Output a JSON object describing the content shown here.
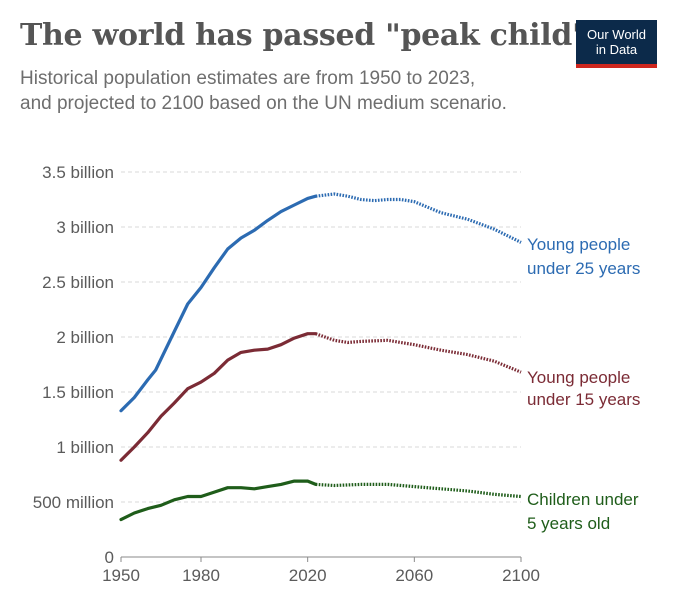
{
  "header": {
    "title": "The world has passed \"peak child\"",
    "subtitle_line1": "Historical population estimates are from 1950 to 2023,",
    "subtitle_line2": "and projected to 2100 based on the UN medium scenario.",
    "logo_line1": "Our World",
    "logo_line2": "in Data"
  },
  "colors": {
    "under25": "#2c6bb2",
    "under15": "#7b2b35",
    "under5": "#1f5d1a",
    "logo_bg": "#0c2a4a",
    "logo_accent": "#ce261e"
  },
  "chart_data": {
    "type": "line",
    "title": "The world has passed \"peak child\"",
    "xlim": [
      1950,
      2100
    ],
    "ylim": [
      0,
      3500000000
    ],
    "projection_start": 2023,
    "x_ticks": [
      {
        "value": 1950,
        "label": "1950"
      },
      {
        "value": 1980,
        "label": "1980"
      },
      {
        "value": 2020,
        "label": "2020"
      },
      {
        "value": 2060,
        "label": "2060"
      },
      {
        "value": 2100,
        "label": "2100"
      }
    ],
    "y_ticks": [
      {
        "value": 0,
        "label": "0"
      },
      {
        "value": 500000000,
        "label": "500 million"
      },
      {
        "value": 1000000000,
        "label": "1 billion"
      },
      {
        "value": 1500000000,
        "label": "1.5 billion"
      },
      {
        "value": 2000000000,
        "label": "2 billion"
      },
      {
        "value": 2500000000,
        "label": "2.5 billion"
      },
      {
        "value": 3000000000,
        "label": "3 billion"
      },
      {
        "value": 3500000000,
        "label": "3.5 billion"
      }
    ],
    "series": [
      {
        "key": "under25",
        "name": "Young people under 25 years",
        "label_lines": [
          "Young people",
          "under 25 years"
        ],
        "points": [
          [
            1950,
            1.33
          ],
          [
            1955,
            1.45
          ],
          [
            1960,
            1.61
          ],
          [
            1963,
            1.7
          ],
          [
            1965,
            1.8
          ],
          [
            1970,
            2.05
          ],
          [
            1975,
            2.3
          ],
          [
            1980,
            2.45
          ],
          [
            1985,
            2.63
          ],
          [
            1990,
            2.8
          ],
          [
            1995,
            2.9
          ],
          [
            2000,
            2.97
          ],
          [
            2005,
            3.06
          ],
          [
            2010,
            3.14
          ],
          [
            2015,
            3.2
          ],
          [
            2020,
            3.26
          ],
          [
            2023,
            3.28
          ],
          [
            2030,
            3.3
          ],
          [
            2035,
            3.28
          ],
          [
            2040,
            3.25
          ],
          [
            2045,
            3.24
          ],
          [
            2050,
            3.25
          ],
          [
            2055,
            3.25
          ],
          [
            2060,
            3.23
          ],
          [
            2070,
            3.13
          ],
          [
            2080,
            3.07
          ],
          [
            2090,
            2.98
          ],
          [
            2100,
            2.86
          ]
        ]
      },
      {
        "key": "under15",
        "name": "Young people under 15 years",
        "label_lines": [
          "Young people",
          "under 15 years"
        ],
        "points": [
          [
            1950,
            0.88
          ],
          [
            1955,
            1.0
          ],
          [
            1960,
            1.13
          ],
          [
            1965,
            1.28
          ],
          [
            1970,
            1.4
          ],
          [
            1975,
            1.53
          ],
          [
            1980,
            1.59
          ],
          [
            1985,
            1.67
          ],
          [
            1990,
            1.79
          ],
          [
            1995,
            1.86
          ],
          [
            2000,
            1.88
          ],
          [
            2005,
            1.89
          ],
          [
            2010,
            1.93
          ],
          [
            2015,
            1.99
          ],
          [
            2020,
            2.03
          ],
          [
            2023,
            2.03
          ],
          [
            2030,
            1.97
          ],
          [
            2035,
            1.95
          ],
          [
            2040,
            1.96
          ],
          [
            2050,
            1.97
          ],
          [
            2060,
            1.93
          ],
          [
            2070,
            1.88
          ],
          [
            2080,
            1.84
          ],
          [
            2090,
            1.78
          ],
          [
            2100,
            1.68
          ]
        ]
      },
      {
        "key": "under5",
        "name": "Children under 5 years old",
        "label_lines": [
          "Children under",
          "5 years old"
        ],
        "points": [
          [
            1950,
            0.34
          ],
          [
            1955,
            0.4
          ],
          [
            1960,
            0.44
          ],
          [
            1965,
            0.47
          ],
          [
            1970,
            0.52
          ],
          [
            1975,
            0.55
          ],
          [
            1980,
            0.55
          ],
          [
            1985,
            0.59
          ],
          [
            1990,
            0.63
          ],
          [
            1995,
            0.63
          ],
          [
            2000,
            0.62
          ],
          [
            2005,
            0.64
          ],
          [
            2010,
            0.66
          ],
          [
            2015,
            0.69
          ],
          [
            2020,
            0.69
          ],
          [
            2023,
            0.66
          ],
          [
            2030,
            0.65
          ],
          [
            2040,
            0.66
          ],
          [
            2050,
            0.66
          ],
          [
            2060,
            0.64
          ],
          [
            2070,
            0.62
          ],
          [
            2080,
            0.6
          ],
          [
            2090,
            0.57
          ],
          [
            2100,
            0.55
          ]
        ]
      }
    ]
  }
}
